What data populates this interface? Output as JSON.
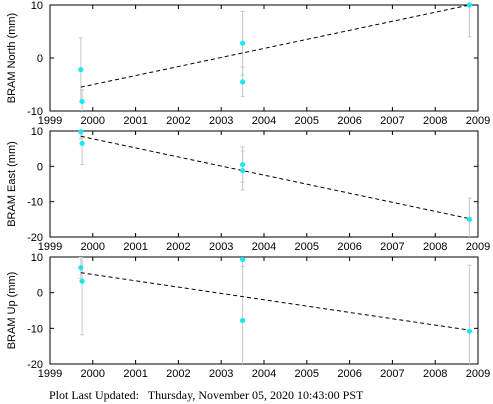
{
  "footer": {
    "label": "Plot Last Updated:",
    "timestamp": "Thursday, November 05, 2020 10:43:00 PST"
  },
  "colors": {
    "point": "#1ee6f0",
    "errorbar": "#c8c8c8",
    "trend": "#000000",
    "axis": "#000000"
  },
  "chart_data": [
    {
      "type": "scatter",
      "ylabel": "BRAM North (mm)",
      "xlim": [
        1999,
        2009
      ],
      "ylim": [
        -10,
        10
      ],
      "xticks": [
        1999,
        2000,
        2001,
        2002,
        2003,
        2004,
        2005,
        2006,
        2007,
        2008,
        2009
      ],
      "yticks": [
        -10,
        0,
        10
      ],
      "points": [
        {
          "x": 1999.72,
          "y": -2.2,
          "err": 6.0
        },
        {
          "x": 1999.75,
          "y": -8.2,
          "err": 2.2
        },
        {
          "x": 2003.5,
          "y": 2.8,
          "err": 6.0
        },
        {
          "x": 2003.5,
          "y": -4.5,
          "err": 2.8
        },
        {
          "x": 2008.8,
          "y": 10.0,
          "err": 6.0
        }
      ],
      "trend": [
        [
          1999.72,
          -5.5
        ],
        [
          2008.8,
          10.0
        ]
      ]
    },
    {
      "type": "scatter",
      "ylabel": "BRAM East (mm)",
      "xlim": [
        1999,
        2009
      ],
      "ylim": [
        -20,
        10
      ],
      "xticks": [
        1999,
        2000,
        2001,
        2002,
        2003,
        2004,
        2005,
        2006,
        2007,
        2008,
        2009
      ],
      "yticks": [
        -20,
        -10,
        0,
        10
      ],
      "points": [
        {
          "x": 1999.72,
          "y": 9.8,
          "err": 2.0
        },
        {
          "x": 1999.75,
          "y": 6.5,
          "err": 6.0
        },
        {
          "x": 2003.5,
          "y": 0.5,
          "err": 5.0
        },
        {
          "x": 2003.5,
          "y": -1.2,
          "err": 5.5
        },
        {
          "x": 2008.8,
          "y": -15.0,
          "err": 6.0
        }
      ],
      "trend": [
        [
          1999.72,
          8.5
        ],
        [
          2008.8,
          -14.8
        ]
      ]
    },
    {
      "type": "scatter",
      "ylabel": "BRAM Up (mm)",
      "xlim": [
        1999,
        2009
      ],
      "ylim": [
        -20,
        10
      ],
      "xticks": [
        1999,
        2000,
        2001,
        2002,
        2003,
        2004,
        2005,
        2006,
        2007,
        2008,
        2009
      ],
      "yticks": [
        -20,
        -10,
        0,
        10
      ],
      "points": [
        {
          "x": 1999.72,
          "y": 7.0,
          "err": 3.0
        },
        {
          "x": 1999.75,
          "y": 3.2,
          "err": 15.0
        },
        {
          "x": 2003.5,
          "y": 9.3,
          "err": 2.0
        },
        {
          "x": 2003.5,
          "y": -7.8,
          "err": 17.0
        },
        {
          "x": 2008.8,
          "y": -10.8,
          "err": 18.5
        }
      ],
      "trend": [
        [
          1999.72,
          5.6
        ],
        [
          2008.8,
          -10.5
        ]
      ]
    }
  ]
}
